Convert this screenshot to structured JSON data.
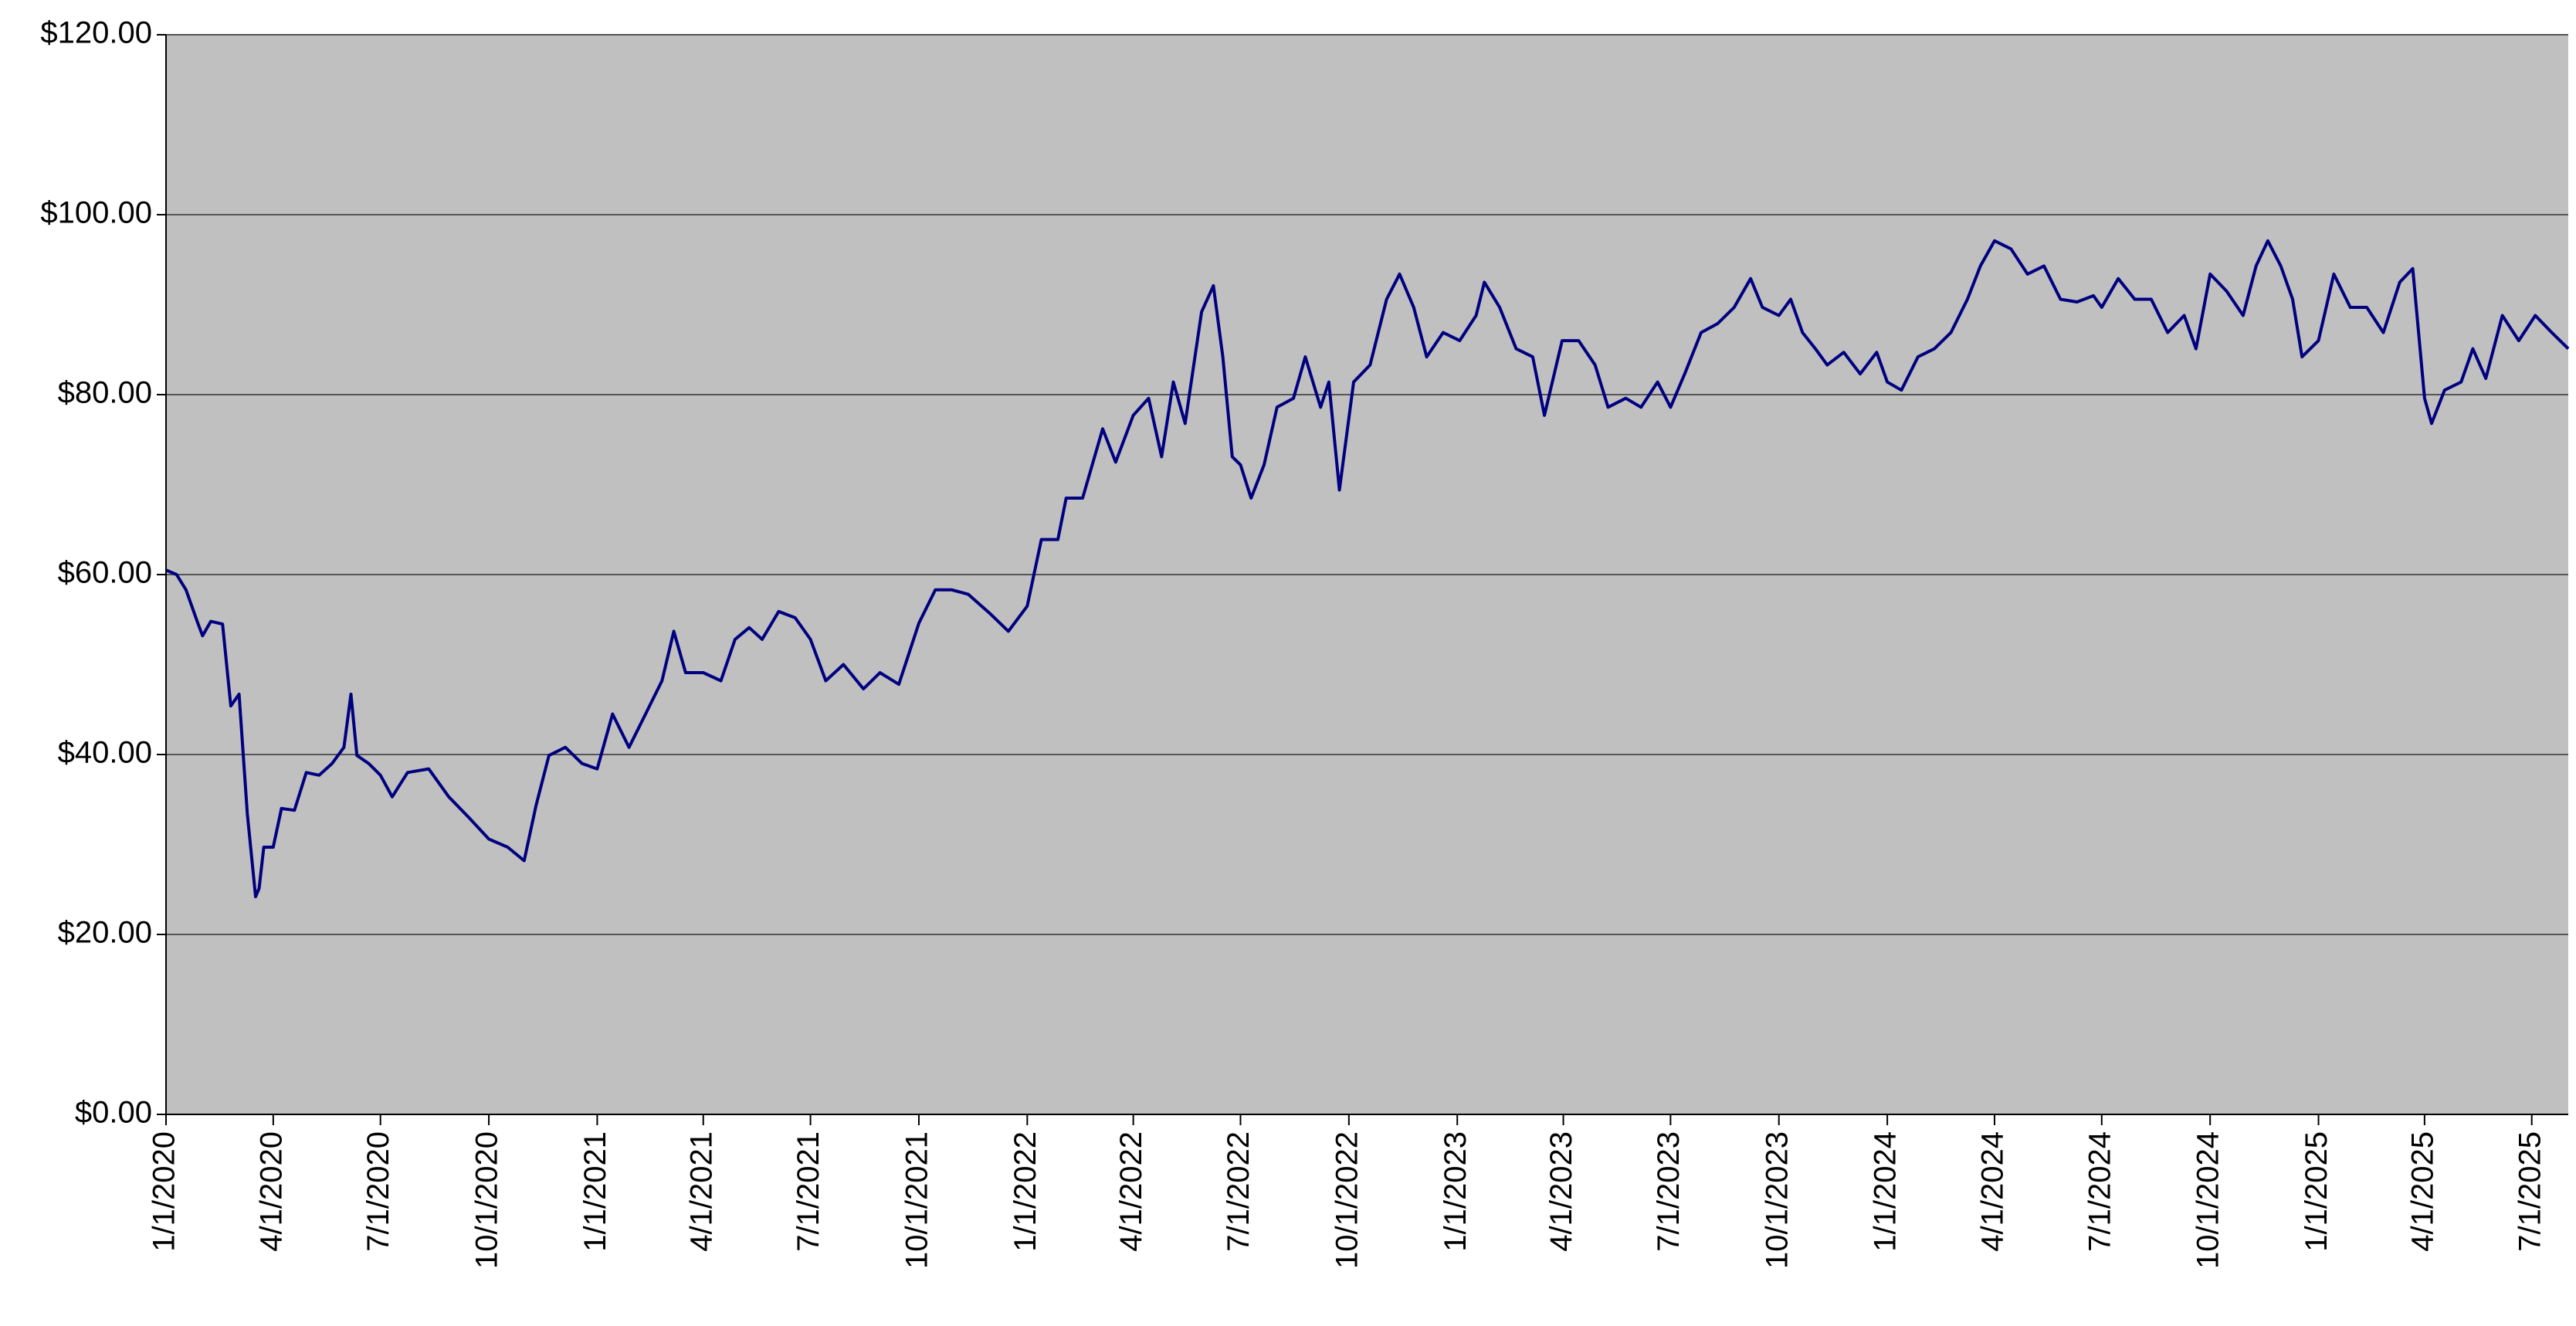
{
  "chart_data": {
    "type": "line",
    "color": "#000080",
    "plot_background": "#c0c0c0",
    "grid": true,
    "x": [
      "1/1/2020",
      "1/10/2020",
      "1/18/2020",
      "1/28/2020",
      "2/1/2020",
      "2/8/2020",
      "2/18/2020",
      "2/25/2020",
      "3/3/2020",
      "3/10/2020",
      "3/17/2020",
      "3/20/2020",
      "3/24/2020",
      "4/1/2020",
      "4/8/2020",
      "4/19/2020",
      "4/29/2020",
      "5/10/2020",
      "5/21/2020",
      "5/31/2020",
      "6/6/2020",
      "6/11/2020",
      "6/21/2020",
      "7/1/2020",
      "7/11/2020",
      "7/24/2020",
      "8/11/2020",
      "8/28/2020",
      "9/14/2020",
      "10/1/2020",
      "10/17/2020",
      "10/31/2020",
      "11/10/2020",
      "11/21/2020",
      "12/5/2020",
      "12/19/2020",
      "1/1/2021",
      "1/14/2021",
      "1/28/2021",
      "2/11/2021",
      "2/25/2021",
      "3/7/2021",
      "3/17/2021",
      "4/1/2021",
      "4/16/2021",
      "4/28/2021",
      "5/10/2021",
      "5/21/2021",
      "6/4/2021",
      "6/18/2021",
      "7/1/2021",
      "7/14/2021",
      "7/29/2021",
      "8/15/2021",
      "8/29/2021",
      "9/14/2021",
      "10/1/2021",
      "10/15/2021",
      "10/29/2021",
      "11/12/2021",
      "12/1/2021",
      "12/16/2021",
      "1/1/2022",
      "1/13/2022",
      "1/27/2022",
      "2/3/2022",
      "2/17/2022",
      "3/6/2022",
      "3/17/2022",
      "4/1/2022",
      "4/14/2022",
      "4/25/2022",
      "5/5/2022",
      "5/15/2022",
      "5/29/2022",
      "6/8/2022",
      "6/16/2022",
      "6/24/2022",
      "7/1/2022",
      "7/10/2022",
      "7/21/2022",
      "8/1/2022",
      "8/15/2022",
      "8/25/2022",
      "9/7/2022",
      "9/14/2022",
      "9/23/2022",
      "10/5/2022",
      "10/19/2022",
      "11/2/2022",
      "11/13/2022",
      "11/25/2022",
      "12/6/2022",
      "12/20/2022",
      "1/3/2023",
      "1/17/2023",
      "1/24/2023",
      "2/6/2023",
      "2/20/2023",
      "3/6/2023",
      "3/16/2023",
      "3/31/2023",
      "4/14/2023",
      "4/28/2023",
      "5/9/2023",
      "5/24/2023",
      "6/6/2023",
      "6/20/2023",
      "7/1/2023",
      "7/13/2023",
      "7/27/2023",
      "8/10/2023",
      "8/24/2023",
      "9/7/2023",
      "9/17/2023",
      "10/1/2023",
      "10/11/2023",
      "10/21/2023",
      "11/1/2023",
      "11/11/2023",
      "11/25/2023",
      "12/9/2023",
      "12/23/2023",
      "1/1/2024",
      "1/13/2024",
      "1/27/2024",
      "2/10/2024",
      "2/24/2024",
      "3/9/2024",
      "3/20/2024",
      "4/1/2024",
      "4/15/2024",
      "4/29/2024",
      "5/13/2024",
      "5/27/2024",
      "6/10/2024",
      "6/24/2024",
      "7/1/2024",
      "7/15/2024",
      "7/29/2024",
      "8/12/2024",
      "8/26/2024",
      "9/9/2024",
      "9/19/2024",
      "10/1/2024",
      "10/15/2024",
      "10/29/2024",
      "11/9/2024",
      "11/19/2024",
      "11/30/2024",
      "12/10/2024",
      "12/18/2024",
      "1/1/2025",
      "1/14/2025",
      "1/28/2025",
      "2/11/2025",
      "2/25/2025",
      "3/11/2025",
      "3/22/2025",
      "4/1/2025",
      "4/7/2025",
      "4/18/2025",
      "5/2/2025",
      "5/12/2025",
      "5/23/2025",
      "6/6/2025",
      "6/20/2025",
      "7/4/2025",
      "7/18/2025",
      "8/1/2025"
    ],
    "values": [
      60.5,
      60,
      58.3,
      54.6,
      53.2,
      54.8,
      54.5,
      45.4,
      46.7,
      33.4,
      24.2,
      25.1,
      29.7,
      29.7,
      34,
      33.8,
      38,
      37.7,
      39,
      40.8,
      46.7,
      39.9,
      39,
      37.7,
      35.3,
      38,
      38.4,
      35.3,
      33,
      30.6,
      29.7,
      28.2,
      34.3,
      39.9,
      40.8,
      39,
      38.4,
      44.5,
      40.8,
      44.5,
      48.2,
      53.7,
      49.1,
      49.1,
      48.2,
      52.8,
      54.1,
      52.8,
      55.9,
      55.2,
      52.8,
      48.2,
      50,
      47.3,
      49.1,
      47.8,
      54.6,
      58.3,
      58.3,
      57.8,
      55.6,
      53.7,
      56.5,
      63.9,
      63.9,
      68.5,
      68.5,
      76.2,
      72.5,
      77.7,
      79.6,
      73.1,
      81.4,
      76.8,
      89.2,
      92.1,
      84.2,
      73.1,
      72.2,
      68.5,
      72.2,
      78.6,
      79.6,
      84.2,
      78.6,
      81.4,
      69.4,
      81.4,
      83.3,
      90.6,
      93.4,
      89.7,
      84.2,
      86.9,
      86,
      88.8,
      92.5,
      89.7,
      85.1,
      84.2,
      77.7,
      86,
      86,
      83.3,
      78.6,
      79.6,
      78.6,
      81.4,
      78.6,
      82.3,
      86.9,
      87.9,
      89.7,
      92.9,
      89.7,
      88.8,
      90.6,
      86.9,
      85.1,
      83.3,
      84.7,
      82.3,
      84.7,
      81.4,
      80.5,
      84.2,
      85.1,
      86.9,
      90.6,
      94.3,
      97.1,
      96.2,
      93.4,
      94.3,
      90.6,
      90.3,
      91,
      89.7,
      92.9,
      90.6,
      90.6,
      86.9,
      88.8,
      85.1,
      93.4,
      91.5,
      88.8,
      94.3,
      97.1,
      94.3,
      90.6,
      84.2,
      86,
      93.4,
      89.7,
      89.7,
      86.9,
      92.5,
      94,
      79.6,
      76.8,
      80.5,
      81.4,
      85.1,
      81.8,
      88.8,
      86,
      88.8,
      86.9,
      85.1
    ],
    "xlim": [
      "1/1/2020",
      "8/1/2025"
    ],
    "xticks": [
      "1/1/2020",
      "4/1/2020",
      "7/1/2020",
      "10/1/2020",
      "1/1/2021",
      "4/1/2021",
      "7/1/2021",
      "10/1/2021",
      "1/1/2022",
      "4/1/2022",
      "7/1/2022",
      "10/1/2022",
      "1/1/2023",
      "4/1/2023",
      "7/1/2023",
      "10/1/2023",
      "1/1/2024",
      "4/1/2024",
      "7/1/2024",
      "10/1/2024",
      "1/1/2025",
      "4/1/2025",
      "7/1/2025"
    ],
    "ylim": [
      0,
      120
    ],
    "yticks": [
      {
        "value": 0,
        "label": "$0.00"
      },
      {
        "value": 20,
        "label": "$20.00"
      },
      {
        "value": 40,
        "label": "$40.00"
      },
      {
        "value": 60,
        "label": "$60.00"
      },
      {
        "value": 80,
        "label": "$80.00"
      },
      {
        "value": 100,
        "label": "$100.00"
      },
      {
        "value": 120,
        "label": "$120.00"
      }
    ]
  }
}
